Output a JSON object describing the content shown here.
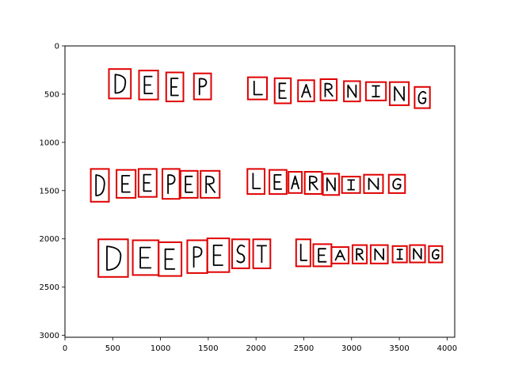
{
  "chart_data": {
    "type": "scatter",
    "title": "",
    "xlabel": "",
    "ylabel": "",
    "xlim": [
      0,
      4080
    ],
    "ylim": [
      3020,
      0
    ],
    "y_inverted": true,
    "grid": false,
    "x_ticks": [
      0,
      500,
      1000,
      1500,
      2000,
      2500,
      3000,
      3500,
      4000
    ],
    "x_tick_labels": [
      "0",
      "500",
      "1000",
      "1500",
      "2000",
      "2500",
      "3000",
      "3500",
      "4000"
    ],
    "y_ticks": [
      0,
      500,
      1000,
      1500,
      2000,
      2500,
      3000
    ],
    "y_tick_labels": [
      "0",
      "500",
      "1000",
      "1500",
      "2000",
      "2500",
      "3000"
    ],
    "box_color": "#e00000",
    "ink_color": "#000000",
    "lines": [
      {
        "text": "DEEP LEARNING",
        "boxes": [
          {
            "char": "D",
            "x0": 460,
            "y0": 240,
            "x1": 690,
            "y1": 545
          },
          {
            "char": "E",
            "x0": 775,
            "y0": 255,
            "x1": 975,
            "y1": 555
          },
          {
            "char": "E",
            "x0": 1060,
            "y0": 275,
            "x1": 1240,
            "y1": 575
          },
          {
            "char": "P",
            "x0": 1350,
            "y0": 285,
            "x1": 1530,
            "y1": 555
          },
          {
            "char": "L",
            "x0": 1915,
            "y0": 325,
            "x1": 2115,
            "y1": 555
          },
          {
            "char": "E",
            "x0": 2195,
            "y0": 335,
            "x1": 2365,
            "y1": 595
          },
          {
            "char": "A",
            "x0": 2440,
            "y0": 355,
            "x1": 2610,
            "y1": 575
          },
          {
            "char": "R",
            "x0": 2675,
            "y0": 345,
            "x1": 2845,
            "y1": 565
          },
          {
            "char": "N",
            "x0": 2920,
            "y0": 365,
            "x1": 3090,
            "y1": 575
          },
          {
            "char": "I",
            "x0": 3150,
            "y0": 375,
            "x1": 3360,
            "y1": 565
          },
          {
            "char": "N",
            "x0": 3400,
            "y0": 375,
            "x1": 3600,
            "y1": 615
          },
          {
            "char": "G",
            "x0": 3660,
            "y0": 425,
            "x1": 3820,
            "y1": 645
          }
        ]
      },
      {
        "text": "DEEPER LEARNING",
        "boxes": [
          {
            "char": "D",
            "x0": 270,
            "y0": 1275,
            "x1": 460,
            "y1": 1615
          },
          {
            "char": "E",
            "x0": 540,
            "y0": 1285,
            "x1": 740,
            "y1": 1575
          },
          {
            "char": "E",
            "x0": 770,
            "y0": 1275,
            "x1": 960,
            "y1": 1565
          },
          {
            "char": "P",
            "x0": 1020,
            "y0": 1275,
            "x1": 1200,
            "y1": 1585
          },
          {
            "char": "E",
            "x0": 1210,
            "y0": 1295,
            "x1": 1390,
            "y1": 1575
          },
          {
            "char": "R",
            "x0": 1420,
            "y0": 1295,
            "x1": 1620,
            "y1": 1575
          },
          {
            "char": "L",
            "x0": 1910,
            "y0": 1275,
            "x1": 2090,
            "y1": 1535
          },
          {
            "char": "E",
            "x0": 2140,
            "y0": 1285,
            "x1": 2320,
            "y1": 1535
          },
          {
            "char": "A",
            "x0": 2340,
            "y0": 1305,
            "x1": 2480,
            "y1": 1525
          },
          {
            "char": "R",
            "x0": 2510,
            "y0": 1305,
            "x1": 2690,
            "y1": 1535
          },
          {
            "char": "N",
            "x0": 2700,
            "y0": 1325,
            "x1": 2870,
            "y1": 1545
          },
          {
            "char": "I",
            "x0": 2900,
            "y0": 1355,
            "x1": 3090,
            "y1": 1525
          },
          {
            "char": "N",
            "x0": 3130,
            "y0": 1335,
            "x1": 3330,
            "y1": 1525
          },
          {
            "char": "G",
            "x0": 3390,
            "y0": 1335,
            "x1": 3560,
            "y1": 1525
          }
        ]
      },
      {
        "text": "DEEPEST LEARNING",
        "boxes": [
          {
            "char": "D",
            "x0": 350,
            "y0": 2005,
            "x1": 660,
            "y1": 2395
          },
          {
            "char": "E",
            "x0": 710,
            "y0": 2015,
            "x1": 980,
            "y1": 2375
          },
          {
            "char": "E",
            "x0": 980,
            "y0": 2035,
            "x1": 1220,
            "y1": 2385
          },
          {
            "char": "P",
            "x0": 1280,
            "y0": 2015,
            "x1": 1490,
            "y1": 2355
          },
          {
            "char": "E",
            "x0": 1490,
            "y0": 1995,
            "x1": 1720,
            "y1": 2345
          },
          {
            "char": "S",
            "x0": 1750,
            "y0": 2005,
            "x1": 1930,
            "y1": 2305
          },
          {
            "char": "T",
            "x0": 1970,
            "y0": 2005,
            "x1": 2150,
            "y1": 2305
          },
          {
            "char": "L",
            "x0": 2420,
            "y0": 2005,
            "x1": 2570,
            "y1": 2285
          },
          {
            "char": "E",
            "x0": 2600,
            "y0": 2055,
            "x1": 2790,
            "y1": 2285
          },
          {
            "char": "A",
            "x0": 2790,
            "y0": 2085,
            "x1": 2970,
            "y1": 2255
          },
          {
            "char": "R",
            "x0": 3010,
            "y0": 2065,
            "x1": 3160,
            "y1": 2255
          },
          {
            "char": "N",
            "x0": 3200,
            "y0": 2065,
            "x1": 3380,
            "y1": 2255
          },
          {
            "char": "I",
            "x0": 3430,
            "y0": 2075,
            "x1": 3580,
            "y1": 2245
          },
          {
            "char": "N",
            "x0": 3610,
            "y0": 2065,
            "x1": 3770,
            "y1": 2245
          },
          {
            "char": "G",
            "x0": 3810,
            "y0": 2075,
            "x1": 3950,
            "y1": 2245
          }
        ]
      }
    ]
  }
}
